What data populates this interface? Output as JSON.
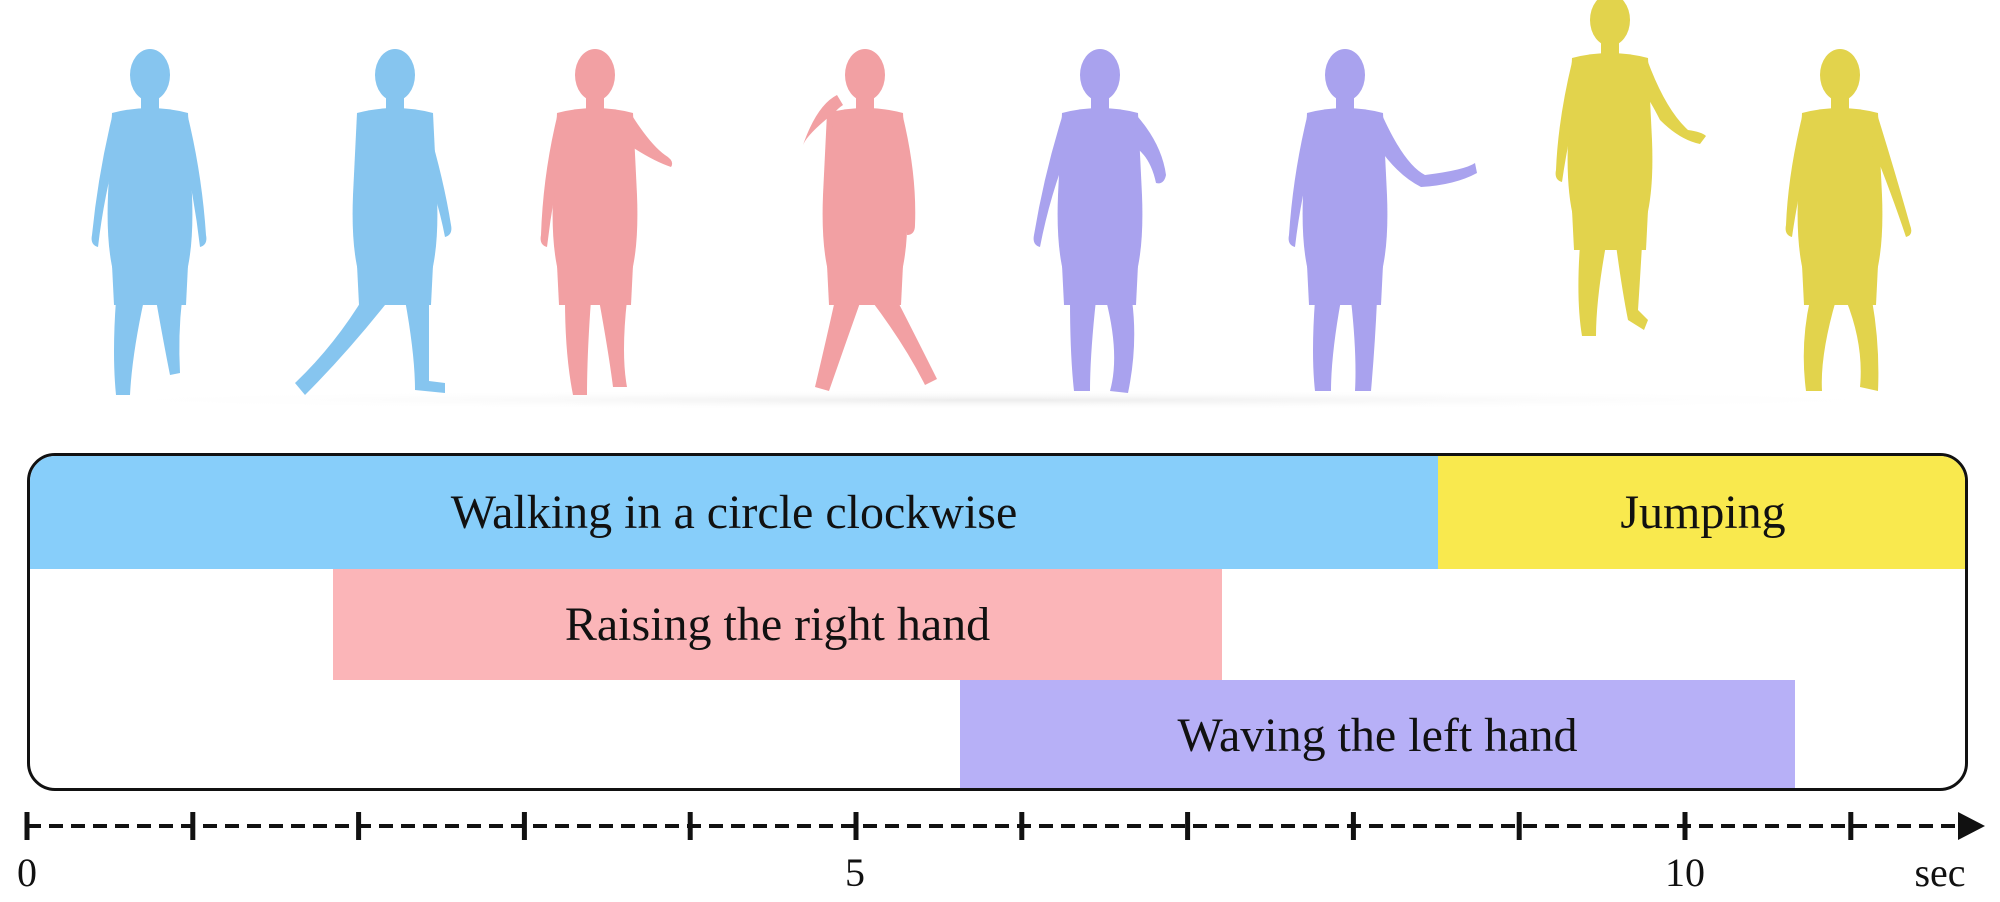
{
  "colors": {
    "walking": "#87CEFA",
    "jumping": "#F9E94E",
    "raising": "#FBB5B8",
    "waving": "#B7B0F7",
    "walking_figure": "#86C5EF",
    "raising_figure": "#F2A0A3",
    "waving_figure": "#A9A2EE",
    "jumping_figure": "#E2D34C"
  },
  "actions": {
    "walking": "Walking in a circle clockwise",
    "jumping": "Jumping",
    "raising": "Raising the right hand",
    "waving": "Waving the left hand"
  },
  "axis": {
    "ticks": [
      "0",
      "5",
      "10"
    ],
    "unit": "sec"
  }
}
